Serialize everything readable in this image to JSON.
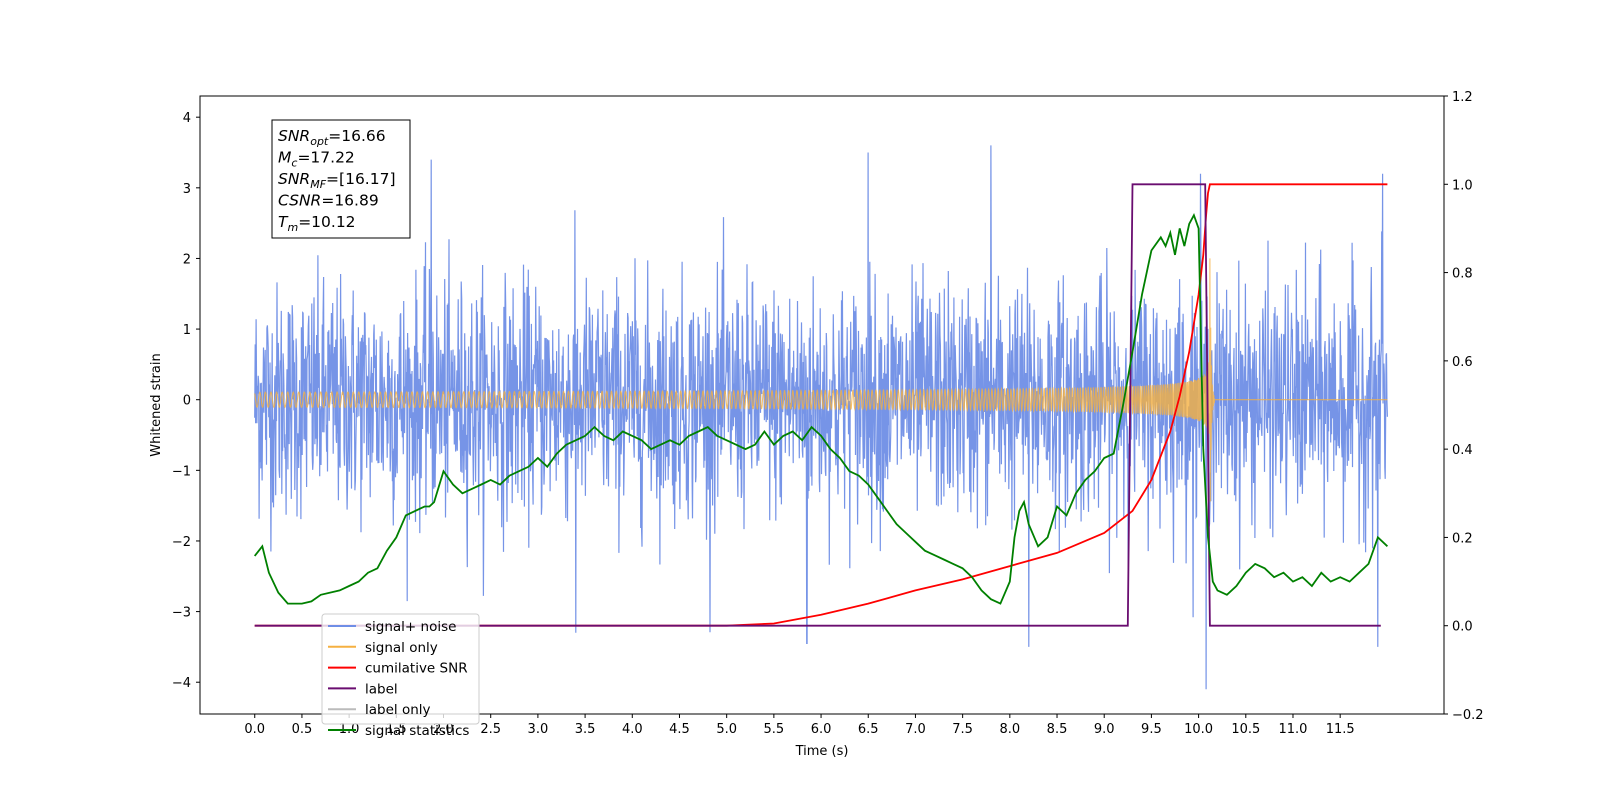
{
  "chart_data": {
    "type": "line",
    "xlabel": "Time (s)",
    "ylabel_left": "Whitened strain",
    "ylabel_right": "",
    "x_range": [
      -0.58,
      12.6
    ],
    "y_left_range": [
      -4.45,
      4.3
    ],
    "y_right_range": [
      -0.2,
      1.2
    ],
    "x_ticks": [
      "0.0",
      "0.5",
      "1.0",
      "1.5",
      "2.0",
      "2.5",
      "3.0",
      "3.5",
      "4.0",
      "4.5",
      "5.0",
      "5.5",
      "6.0",
      "6.5",
      "7.0",
      "7.5",
      "8.0",
      "8.5",
      "9.0",
      "9.5",
      "10.0",
      "10.5",
      "11.0",
      "11.5"
    ],
    "y_left_ticks": [
      "4",
      "3",
      "2",
      "1",
      "0",
      "−1",
      "−2",
      "−3",
      "−4"
    ],
    "y_right_ticks": [
      "1.2",
      "1.0",
      "0.8",
      "0.6",
      "0.4",
      "0.2",
      "0.0",
      "−0.2"
    ],
    "grid": false,
    "legend_position": "lower-left",
    "annotation": {
      "position": "top-left",
      "lines": [
        {
          "sym": "SNR",
          "sub": "opt",
          "value": "=16.66"
        },
        {
          "sym": "M",
          "sub": "c",
          "value": "=17.22"
        },
        {
          "sym": "SNR",
          "sub": "MF",
          "value": "=[16.17]"
        },
        {
          "sym": "CSNR",
          "sub": "",
          "value": "=16.89"
        },
        {
          "sym": "T",
          "sub": "m",
          "value": "=10.12"
        }
      ]
    },
    "series": [
      {
        "name": "signal+ noise",
        "axis": "left",
        "color": "#6f8ee6",
        "kind": "noise",
        "x_range": [
          0.0,
          12.0
        ],
        "std": 1.05,
        "peak_max": 3.6,
        "peak_min": -4.1,
        "notable_peaks": [
          [
            1.87,
            3.4
          ],
          [
            7.8,
            3.65
          ],
          [
            6.5,
            3.5
          ],
          [
            10.08,
            -4.1
          ],
          [
            10.02,
            3.2
          ],
          [
            11.95,
            3.2
          ],
          [
            3.4,
            -3.3
          ],
          [
            8.2,
            -3.5
          ],
          [
            11.9,
            -3.5
          ],
          [
            5.85,
            -3.45
          ]
        ]
      },
      {
        "name": "signal only",
        "axis": "left",
        "color": "#f5b041",
        "kind": "chirp",
        "x_range": [
          0.0,
          12.0
        ],
        "merger_time": 10.12,
        "peak_amplitude": 2.0
      },
      {
        "name": "cumilative SNR",
        "axis": "right",
        "color": "#ff0000",
        "x": [
          0.0,
          5.0,
          5.5,
          6.0,
          6.5,
          7.0,
          7.5,
          8.0,
          8.5,
          9.0,
          9.3,
          9.5,
          9.7,
          9.8,
          9.9,
          10.0,
          10.05,
          10.08,
          10.1,
          10.12,
          12.0
        ],
        "y": [
          0.0,
          0.0,
          0.005,
          0.025,
          0.05,
          0.08,
          0.105,
          0.135,
          0.165,
          0.21,
          0.26,
          0.33,
          0.44,
          0.52,
          0.62,
          0.75,
          0.84,
          0.93,
          0.98,
          1.0,
          1.0
        ]
      },
      {
        "name": "label",
        "axis": "right",
        "color": "#6a0d70",
        "x": [
          0.0,
          9.25,
          9.3,
          10.07,
          10.12,
          11.93
        ],
        "y": [
          0.0,
          0.0,
          1.0,
          1.0,
          0.0,
          0.0
        ]
      },
      {
        "name": "label only",
        "axis": "right",
        "color": "#bbbbbb",
        "hidden_in_plot": true,
        "x": [],
        "y": []
      },
      {
        "name": "signal statistics",
        "axis": "right",
        "color": "#008000",
        "x": [
          0.0,
          0.08,
          0.15,
          0.25,
          0.35,
          0.5,
          0.6,
          0.7,
          0.9,
          1.0,
          1.1,
          1.2,
          1.3,
          1.4,
          1.5,
          1.6,
          1.7,
          1.8,
          1.85,
          1.9,
          2.0,
          2.1,
          2.2,
          2.3,
          2.4,
          2.5,
          2.6,
          2.7,
          2.8,
          2.9,
          3.0,
          3.1,
          3.2,
          3.3,
          3.4,
          3.5,
          3.6,
          3.7,
          3.8,
          3.9,
          4.0,
          4.1,
          4.2,
          4.3,
          4.4,
          4.5,
          4.6,
          4.7,
          4.8,
          4.9,
          5.0,
          5.1,
          5.2,
          5.3,
          5.4,
          5.5,
          5.6,
          5.7,
          5.8,
          5.9,
          6.0,
          6.1,
          6.2,
          6.3,
          6.4,
          6.5,
          6.6,
          6.7,
          6.8,
          6.9,
          7.0,
          7.1,
          7.2,
          7.3,
          7.4,
          7.5,
          7.6,
          7.7,
          7.8,
          7.9,
          8.0,
          8.05,
          8.1,
          8.15,
          8.2,
          8.3,
          8.4,
          8.5,
          8.6,
          8.7,
          8.8,
          8.9,
          9.0,
          9.1,
          9.2,
          9.3,
          9.4,
          9.5,
          9.6,
          9.65,
          9.7,
          9.75,
          9.8,
          9.85,
          9.9,
          9.95,
          10.0,
          10.05,
          10.1,
          10.15,
          10.2,
          10.3,
          10.4,
          10.5,
          10.6,
          10.7,
          10.8,
          10.9,
          11.0,
          11.1,
          11.2,
          11.3,
          11.4,
          11.5,
          11.6,
          11.7,
          11.8,
          11.9,
          12.0
        ],
        "y": [
          0.158,
          0.18,
          0.12,
          0.075,
          0.05,
          0.05,
          0.055,
          0.07,
          0.08,
          0.09,
          0.1,
          0.12,
          0.13,
          0.17,
          0.2,
          0.25,
          0.26,
          0.27,
          0.27,
          0.28,
          0.35,
          0.32,
          0.3,
          0.31,
          0.32,
          0.33,
          0.32,
          0.34,
          0.35,
          0.36,
          0.38,
          0.36,
          0.39,
          0.41,
          0.42,
          0.43,
          0.45,
          0.43,
          0.42,
          0.44,
          0.43,
          0.42,
          0.4,
          0.41,
          0.42,
          0.41,
          0.43,
          0.44,
          0.45,
          0.43,
          0.42,
          0.41,
          0.4,
          0.41,
          0.44,
          0.41,
          0.43,
          0.44,
          0.42,
          0.45,
          0.43,
          0.4,
          0.38,
          0.35,
          0.34,
          0.32,
          0.29,
          0.26,
          0.23,
          0.21,
          0.19,
          0.17,
          0.16,
          0.15,
          0.14,
          0.13,
          0.11,
          0.08,
          0.06,
          0.05,
          0.1,
          0.2,
          0.26,
          0.28,
          0.23,
          0.18,
          0.2,
          0.27,
          0.25,
          0.3,
          0.33,
          0.35,
          0.38,
          0.39,
          0.5,
          0.62,
          0.75,
          0.85,
          0.88,
          0.86,
          0.89,
          0.84,
          0.9,
          0.86,
          0.91,
          0.93,
          0.9,
          0.4,
          0.2,
          0.1,
          0.08,
          0.07,
          0.09,
          0.12,
          0.14,
          0.13,
          0.11,
          0.12,
          0.1,
          0.11,
          0.09,
          0.12,
          0.1,
          0.11,
          0.1,
          0.12,
          0.14,
          0.2,
          0.18
        ]
      }
    ]
  }
}
